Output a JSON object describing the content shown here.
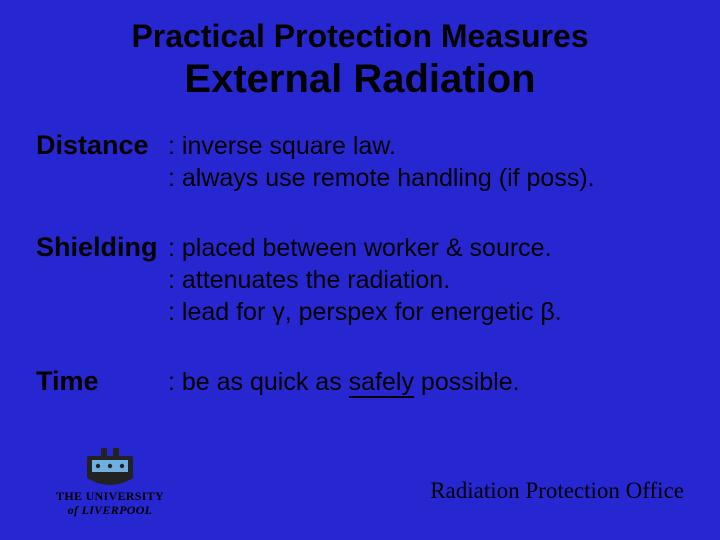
{
  "background_color": "#2727d1",
  "text_color": "#000000",
  "title": {
    "line1": "Practical Protection Measures",
    "line2": "External Radiation",
    "line1_fontsize": 32,
    "line2_fontsize": 40,
    "weight": "bold"
  },
  "rows": [
    {
      "label": "Distance",
      "descs": [
        ": inverse square law.",
        ": always use remote handling (if poss)."
      ]
    },
    {
      "label": "Shielding",
      "descs": [
        ": placed between worker & source.",
        ": attenuates the radiation.",
        ": lead for γ, perspex for energetic β."
      ]
    },
    {
      "label": "Time",
      "descs_html": [
        ": be as quick as <span class=\"u\">safely</span> possible."
      ]
    }
  ],
  "label_fontsize": 27,
  "desc_fontsize": 25,
  "logo": {
    "line1": "THE UNIVERSITY",
    "line2": "of LIVERPOOL",
    "crest_primary": "#1a1a1a",
    "crest_accent": "#6fb0e0"
  },
  "footer": "Radiation Protection Office",
  "footer_fontsize": 23,
  "footer_font": "Times New Roman"
}
